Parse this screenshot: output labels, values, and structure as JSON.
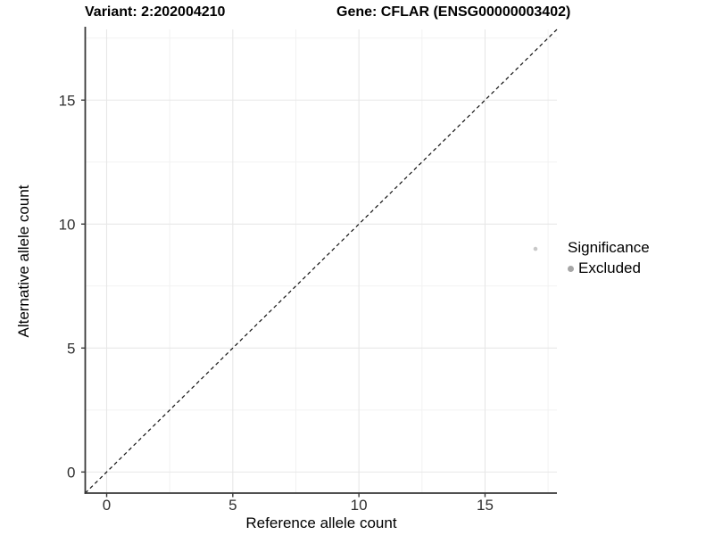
{
  "chart_data": {
    "type": "scatter",
    "titles": {
      "left": "Variant: 2:202004210",
      "right": "Gene: CFLAR (ENSG00000003402)"
    },
    "xlabel": "Reference allele count",
    "ylabel": "Alternative allele count",
    "xlim": [
      -0.85,
      17.85
    ],
    "ylim": [
      -0.85,
      17.85
    ],
    "xticks": [
      0,
      5,
      10,
      15
    ],
    "yticks": [
      0,
      5,
      10,
      15
    ],
    "minor_ticks": [
      2.5,
      7.5,
      12.5,
      17.5
    ],
    "grid": "major and minor gridlines, white panel background",
    "identity_line": {
      "style": "dashed",
      "from": [
        -0.85,
        -0.85
      ],
      "to": [
        17.85,
        17.85
      ],
      "color": "#111111"
    },
    "series": [
      {
        "name": "Excluded",
        "color": "#c8c8c8",
        "points": [
          {
            "x": 17,
            "y": 9
          }
        ]
      }
    ],
    "legend": {
      "title": "Significance",
      "position": "right",
      "items": [
        {
          "label": "Excluded",
          "marker_color": "#a6a6a6"
        }
      ]
    },
    "colors": {
      "grid_major": "#e7e7e7",
      "grid_minor": "#f2f2f2",
      "axis_line": "#383838",
      "tick_mark": "#383838",
      "tick_label": "#303030"
    }
  }
}
